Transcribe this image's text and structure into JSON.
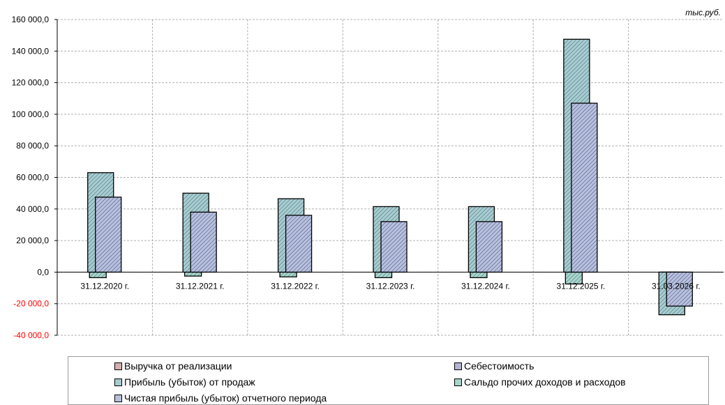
{
  "chart_data": {
    "type": "bar",
    "unit_label": "тыс.руб.",
    "categories": [
      "31.12.2020 г.",
      "31.12.2021 г.",
      "31.12.2022 г.",
      "31.12.2023 г.",
      "31.12.2024 г.",
      "31.12.2025 г.",
      "31.03.2026 г."
    ],
    "ylim": [
      -40000,
      160000
    ],
    "yticks": [
      -40000,
      -20000,
      0,
      20000,
      40000,
      60000,
      80000,
      100000,
      120000,
      140000,
      160000
    ],
    "ytick_labels": [
      "-40 000,0",
      "-20 000,0",
      "0,0",
      "20 000,0",
      "40 000,0",
      "60 000,0",
      "80 000,0",
      "100 000,0",
      "120 000,0",
      "140 000,0",
      "160 000,0"
    ],
    "grid": true,
    "legend_position": "bottom",
    "series": [
      {
        "name": "Выручка от реализации",
        "color": "#c8b4b4",
        "values": [
          0,
          0,
          0,
          0,
          0,
          0,
          0
        ]
      },
      {
        "name": "Себестоимость",
        "color": "#b4b4d2",
        "values": [
          0,
          0,
          0,
          0,
          0,
          0,
          0
        ]
      },
      {
        "name": "Прибыль (убыток) от продаж",
        "color": "#a8ccd0",
        "values": [
          63000,
          50000,
          46500,
          41500,
          41500,
          147500,
          -27000
        ]
      },
      {
        "name": "Сальдо прочих доходов и расходов",
        "color": "#a8d4cc",
        "values": [
          -3500,
          -2500,
          -3000,
          -3500,
          -3500,
          -7500,
          -1500
        ]
      },
      {
        "name": "Чистая прибыль (убыток) отчетного периода",
        "color": "#b8c0dc",
        "values": [
          47500,
          38000,
          36000,
          32000,
          32000,
          107000,
          -21500
        ]
      }
    ]
  }
}
